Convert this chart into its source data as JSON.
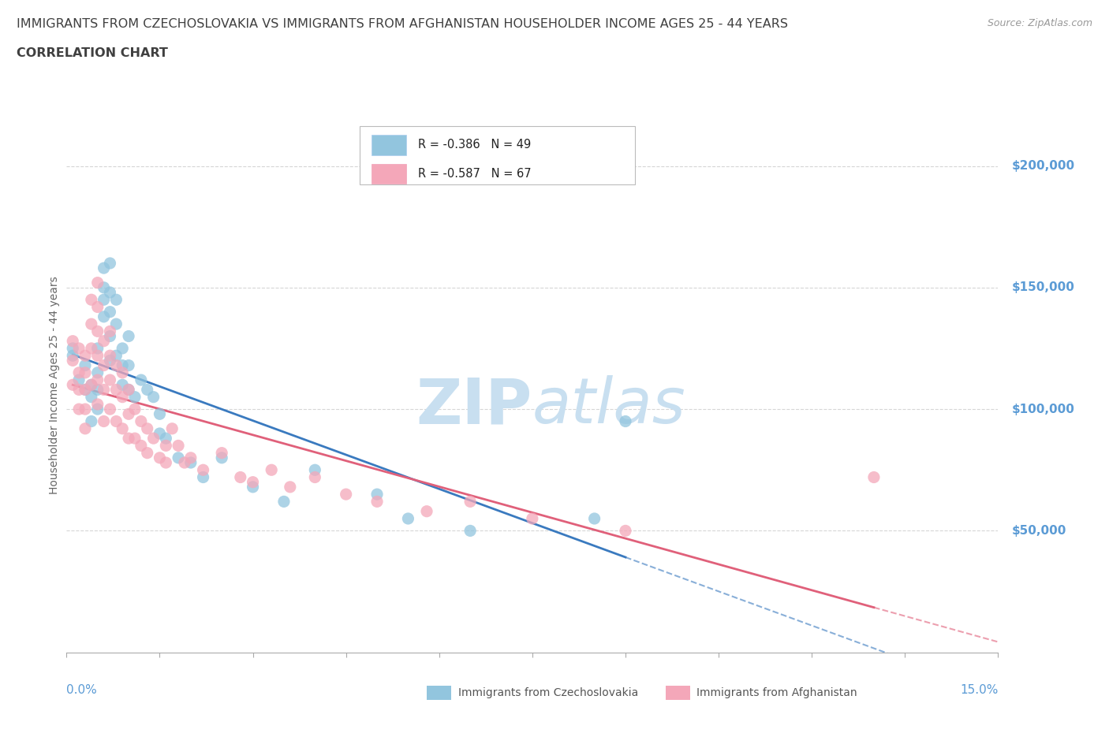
{
  "title_line1": "IMMIGRANTS FROM CZECHOSLOVAKIA VS IMMIGRANTS FROM AFGHANISTAN HOUSEHOLDER INCOME AGES 25 - 44 YEARS",
  "title_line2": "CORRELATION CHART",
  "source_text": "Source: ZipAtlas.com",
  "ylabel": "Householder Income Ages 25 - 44 years",
  "ytick_values": [
    50000,
    100000,
    150000,
    200000
  ],
  "ytick_labels": [
    "$50,000",
    "$100,000",
    "$150,000",
    "$200,000"
  ],
  "series1_name": "Immigrants from Czechoslovakia",
  "series1_color": "#92c5de",
  "series1_line_color": "#3a7abf",
  "series2_name": "Immigrants from Afghanistan",
  "series2_color": "#f4a7b9",
  "series2_line_color": "#e0607a",
  "xmin": 0.0,
  "xmax": 0.15,
  "ymin": 0,
  "ymax": 220000,
  "background_color": "#ffffff",
  "grid_color": "#cccccc",
  "axis_label_color": "#5b9bd5",
  "title_color": "#404040",
  "watermark_color": "#c8dff0",
  "legend_r1": "R = -0.386",
  "legend_n1": "N = 49",
  "legend_r2": "R = -0.587",
  "legend_n2": "N = 67",
  "czecho_x": [
    0.001,
    0.001,
    0.002,
    0.003,
    0.003,
    0.004,
    0.004,
    0.004,
    0.005,
    0.005,
    0.005,
    0.005,
    0.006,
    0.006,
    0.006,
    0.006,
    0.007,
    0.007,
    0.007,
    0.007,
    0.007,
    0.008,
    0.008,
    0.008,
    0.009,
    0.009,
    0.009,
    0.01,
    0.01,
    0.01,
    0.011,
    0.012,
    0.013,
    0.014,
    0.015,
    0.015,
    0.016,
    0.018,
    0.02,
    0.022,
    0.025,
    0.03,
    0.035,
    0.04,
    0.05,
    0.055,
    0.065,
    0.085,
    0.09
  ],
  "czecho_y": [
    125000,
    122000,
    112000,
    118000,
    108000,
    110000,
    105000,
    95000,
    125000,
    115000,
    108000,
    100000,
    158000,
    150000,
    145000,
    138000,
    160000,
    148000,
    140000,
    130000,
    120000,
    145000,
    135000,
    122000,
    125000,
    118000,
    110000,
    130000,
    118000,
    108000,
    105000,
    112000,
    108000,
    105000,
    98000,
    90000,
    88000,
    80000,
    78000,
    72000,
    80000,
    68000,
    62000,
    75000,
    65000,
    55000,
    50000,
    55000,
    95000
  ],
  "afghan_x": [
    0.001,
    0.001,
    0.001,
    0.002,
    0.002,
    0.002,
    0.002,
    0.003,
    0.003,
    0.003,
    0.003,
    0.003,
    0.004,
    0.004,
    0.004,
    0.004,
    0.005,
    0.005,
    0.005,
    0.005,
    0.005,
    0.005,
    0.006,
    0.006,
    0.006,
    0.006,
    0.007,
    0.007,
    0.007,
    0.007,
    0.008,
    0.008,
    0.008,
    0.009,
    0.009,
    0.009,
    0.01,
    0.01,
    0.01,
    0.011,
    0.011,
    0.012,
    0.012,
    0.013,
    0.013,
    0.014,
    0.015,
    0.016,
    0.016,
    0.017,
    0.018,
    0.019,
    0.02,
    0.022,
    0.025,
    0.028,
    0.03,
    0.033,
    0.036,
    0.04,
    0.045,
    0.05,
    0.058,
    0.065,
    0.075,
    0.09,
    0.13
  ],
  "afghan_y": [
    128000,
    120000,
    110000,
    125000,
    115000,
    108000,
    100000,
    122000,
    115000,
    108000,
    100000,
    92000,
    145000,
    135000,
    125000,
    110000,
    152000,
    142000,
    132000,
    122000,
    112000,
    102000,
    128000,
    118000,
    108000,
    95000,
    132000,
    122000,
    112000,
    100000,
    118000,
    108000,
    95000,
    115000,
    105000,
    92000,
    108000,
    98000,
    88000,
    100000,
    88000,
    95000,
    85000,
    92000,
    82000,
    88000,
    80000,
    85000,
    78000,
    92000,
    85000,
    78000,
    80000,
    75000,
    82000,
    72000,
    70000,
    75000,
    68000,
    72000,
    65000,
    62000,
    58000,
    62000,
    55000,
    50000,
    72000
  ]
}
